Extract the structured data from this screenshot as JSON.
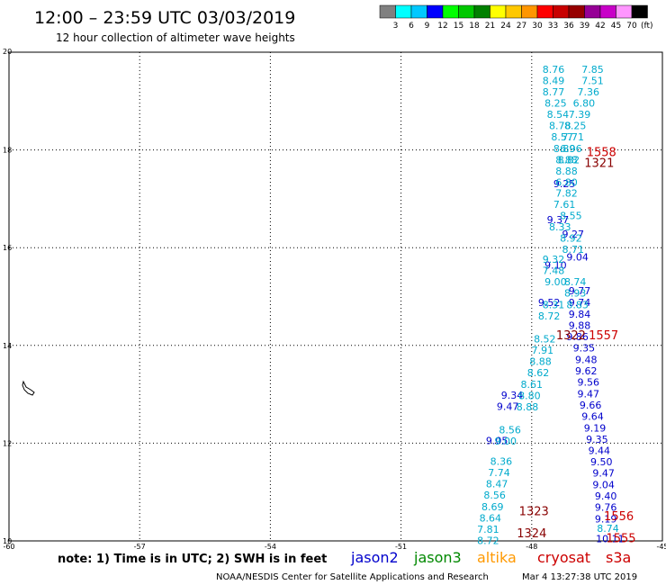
{
  "header": {
    "title": "12:00 – 23:59 UTC 03/03/2019",
    "subtitle": "12 hour collection of altimeter wave heights"
  },
  "colorbar": {
    "unit": "(ft)",
    "colors": [
      "#808080",
      "#00ffff",
      "#00c8ff",
      "#0000ff",
      "#00ff00",
      "#00c800",
      "#008000",
      "#ffff00",
      "#ffc800",
      "#ff9600",
      "#ff0000",
      "#c80000",
      "#960000",
      "#960096",
      "#c800c8",
      "#ff96ff",
      "#000000"
    ],
    "labels": [
      "3",
      "6",
      "9",
      "12",
      "15",
      "18",
      "21",
      "24",
      "27",
      "30",
      "33",
      "36",
      "39",
      "42",
      "45",
      "70"
    ]
  },
  "legend": {
    "note": "note: 1) Time is in UTC; 2) SWH is in feet",
    "items": [
      {
        "name": "jason2",
        "color": "#0000cc"
      },
      {
        "name": "jason3",
        "color": "#008800"
      },
      {
        "name": "altika",
        "color": "#ff9900"
      },
      {
        "name": "cryosat",
        "color": "#cc0000"
      },
      {
        "name": "s3a",
        "color": "#cc0000"
      }
    ]
  },
  "footer": {
    "credit": "NOAA/NESDIS Center for Satellite Applications and Research",
    "timestamp": "Mar  4 13:27:38 UTC 2019"
  },
  "chart_data": {
    "type": "scatter",
    "xlim": [
      -60,
      -45
    ],
    "ylim": [
      10,
      20
    ],
    "xticks": [
      -60,
      -57,
      -54,
      -51,
      -48,
      -45
    ],
    "yticks": [
      10,
      12,
      14,
      16,
      18,
      20
    ],
    "grid": true,
    "series": [
      {
        "name": "jason2",
        "color": "#0000cc",
        "points": [
          {
            "x": -47.25,
            "y": 17.31,
            "v": "9.25"
          },
          {
            "x": -47.4,
            "y": 16.57,
            "v": "9.37"
          },
          {
            "x": -47.05,
            "y": 16.28,
            "v": "9.27"
          },
          {
            "x": -46.95,
            "y": 15.81,
            "v": "9.04"
          },
          {
            "x": -47.45,
            "y": 15.64,
            "v": "9.10"
          },
          {
            "x": -46.9,
            "y": 15.12,
            "v": "9.77"
          },
          {
            "x": -47.6,
            "y": 14.88,
            "v": "9.52"
          },
          {
            "x": -46.9,
            "y": 14.88,
            "v": "9.74"
          },
          {
            "x": -46.9,
            "y": 14.64,
            "v": "9.84"
          },
          {
            "x": -46.9,
            "y": 14.41,
            "v": "9.88"
          },
          {
            "x": -46.95,
            "y": 14.18,
            "v": "9.86"
          },
          {
            "x": -46.8,
            "y": 13.95,
            "v": "9.35"
          },
          {
            "x": -46.75,
            "y": 13.71,
            "v": "9.48"
          },
          {
            "x": -46.75,
            "y": 13.48,
            "v": "9.62"
          },
          {
            "x": -46.7,
            "y": 13.25,
            "v": "9.56"
          },
          {
            "x": -46.7,
            "y": 13.01,
            "v": "9.47"
          },
          {
            "x": -48.45,
            "y": 12.98,
            "v": "9.34"
          },
          {
            "x": -46.65,
            "y": 12.78,
            "v": "9.66"
          },
          {
            "x": -48.55,
            "y": 12.75,
            "v": "9.47"
          },
          {
            "x": -46.6,
            "y": 12.55,
            "v": "9.64"
          },
          {
            "x": -46.55,
            "y": 12.31,
            "v": "9.19"
          },
          {
            "x": -46.5,
            "y": 12.08,
            "v": "9.35"
          },
          {
            "x": -48.8,
            "y": 12.05,
            "v": "9.05"
          },
          {
            "x": -46.45,
            "y": 11.85,
            "v": "9.44"
          },
          {
            "x": -46.4,
            "y": 11.62,
            "v": "9.50"
          },
          {
            "x": -46.35,
            "y": 11.39,
            "v": "9.47"
          },
          {
            "x": -46.35,
            "y": 11.15,
            "v": "9.04"
          },
          {
            "x": -46.3,
            "y": 10.92,
            "v": "9.40"
          },
          {
            "x": -46.3,
            "y": 10.69,
            "v": "9.76"
          },
          {
            "x": -46.3,
            "y": 10.45,
            "v": "9.19"
          },
          {
            "x": -46.2,
            "y": 10.05,
            "v": "10.11"
          }
        ]
      },
      {
        "name": "jason3",
        "color": "#00aacc",
        "points": [
          {
            "x": -47.5,
            "y": 19.65,
            "v": "8.76"
          },
          {
            "x": -46.6,
            "y": 19.65,
            "v": "7.85"
          },
          {
            "x": -47.5,
            "y": 19.42,
            "v": "8.49"
          },
          {
            "x": -46.6,
            "y": 19.42,
            "v": "7.51"
          },
          {
            "x": -47.5,
            "y": 19.19,
            "v": "8.77"
          },
          {
            "x": -46.7,
            "y": 19.19,
            "v": "7.36"
          },
          {
            "x": -47.45,
            "y": 18.96,
            "v": "8.25"
          },
          {
            "x": -46.8,
            "y": 18.96,
            "v": "6.80"
          },
          {
            "x": -47.4,
            "y": 18.73,
            "v": "8.54"
          },
          {
            "x": -46.9,
            "y": 18.73,
            "v": "7.39"
          },
          {
            "x": -47.35,
            "y": 18.5,
            "v": "8.78"
          },
          {
            "x": -47.0,
            "y": 18.5,
            "v": "8.25"
          },
          {
            "x": -47.3,
            "y": 18.27,
            "v": "8.57"
          },
          {
            "x": -47.05,
            "y": 18.27,
            "v": "7.71"
          },
          {
            "x": -47.25,
            "y": 18.03,
            "v": "8.89"
          },
          {
            "x": -47.1,
            "y": 18.03,
            "v": "6.96"
          },
          {
            "x": -47.2,
            "y": 17.8,
            "v": "8.88"
          },
          {
            "x": -47.15,
            "y": 17.8,
            "v": "8.82"
          },
          {
            "x": -47.2,
            "y": 17.57,
            "v": "8.88"
          },
          {
            "x": -47.2,
            "y": 17.34,
            "v": "6.80"
          },
          {
            "x": -47.2,
            "y": 17.12,
            "v": "7.82"
          },
          {
            "x": -47.25,
            "y": 16.89,
            "v": "7.61"
          },
          {
            "x": -47.1,
            "y": 16.66,
            "v": "8.55"
          },
          {
            "x": -47.35,
            "y": 16.43,
            "v": "8.33"
          },
          {
            "x": -47.1,
            "y": 16.2,
            "v": "8.92"
          },
          {
            "x": -47.05,
            "y": 15.97,
            "v": "8.71"
          },
          {
            "x": -47.5,
            "y": 15.76,
            "v": "9.32"
          },
          {
            "x": -47.5,
            "y": 15.53,
            "v": "7.48"
          },
          {
            "x": -47.45,
            "y": 15.3,
            "v": "9.00"
          },
          {
            "x": -47.0,
            "y": 15.3,
            "v": "8.74"
          },
          {
            "x": -47.0,
            "y": 15.07,
            "v": "8.93"
          },
          {
            "x": -47.5,
            "y": 14.83,
            "v": "8.31"
          },
          {
            "x": -46.95,
            "y": 14.83,
            "v": "8.83"
          },
          {
            "x": -47.6,
            "y": 14.6,
            "v": "8.72"
          },
          {
            "x": -47.7,
            "y": 14.13,
            "v": "8.52"
          },
          {
            "x": -47.75,
            "y": 13.9,
            "v": "7.91"
          },
          {
            "x": -47.8,
            "y": 13.67,
            "v": "8.88"
          },
          {
            "x": -47.85,
            "y": 13.44,
            "v": "8.62"
          },
          {
            "x": -48.0,
            "y": 13.2,
            "v": "8.61"
          },
          {
            "x": -48.05,
            "y": 12.97,
            "v": "8.80"
          },
          {
            "x": -48.1,
            "y": 12.74,
            "v": "8.88"
          },
          {
            "x": -48.5,
            "y": 12.27,
            "v": "8.56"
          },
          {
            "x": -48.6,
            "y": 12.04,
            "v": "9.00"
          },
          {
            "x": -48.7,
            "y": 11.63,
            "v": "8.36"
          },
          {
            "x": -48.75,
            "y": 11.4,
            "v": "7.74"
          },
          {
            "x": -48.8,
            "y": 11.17,
            "v": "8.47"
          },
          {
            "x": -48.85,
            "y": 10.94,
            "v": "8.56"
          },
          {
            "x": -48.9,
            "y": 10.7,
            "v": "8.69"
          },
          {
            "x": -48.95,
            "y": 10.47,
            "v": "8.64"
          },
          {
            "x": -49.0,
            "y": 10.24,
            "v": "7.81"
          },
          {
            "x": -49.0,
            "y": 10.01,
            "v": "8.72"
          },
          {
            "x": -46.25,
            "y": 10.26,
            "v": "8.74"
          }
        ]
      },
      {
        "name": "cryosat",
        "color": "#880000",
        "points": [
          {
            "x": -46.45,
            "y": 17.73,
            "v": "1321"
          },
          {
            "x": -47.1,
            "y": 14.2,
            "v": "1322"
          },
          {
            "x": -47.95,
            "y": 10.6,
            "v": "1323"
          },
          {
            "x": -48.0,
            "y": 10.15,
            "v": "1324"
          }
        ]
      },
      {
        "name": "s3a",
        "color": "#cc0000",
        "points": [
          {
            "x": -46.4,
            "y": 17.95,
            "v": "1558"
          },
          {
            "x": -46.35,
            "y": 14.2,
            "v": "1557"
          },
          {
            "x": -46.0,
            "y": 10.5,
            "v": "1556"
          },
          {
            "x": -45.95,
            "y": 10.05,
            "v": "1555"
          }
        ]
      }
    ]
  }
}
